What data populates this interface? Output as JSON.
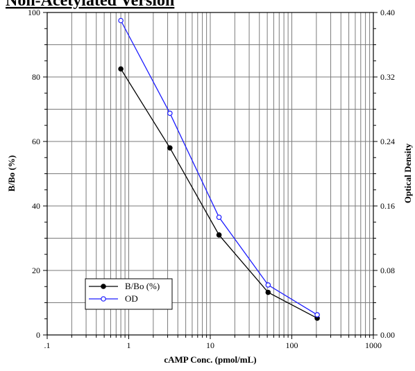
{
  "chart_data": {
    "type": "line",
    "title": "Non-Acetylated Version",
    "xlabel": "cAMP Conc. (pmol/mL)",
    "ylabel": "B/Bo (%)",
    "y2label": "Optical Density",
    "xscale": "log",
    "xlim": [
      0.1,
      1000
    ],
    "ylim": [
      0,
      100
    ],
    "y2lim": [
      0,
      0.4
    ],
    "grid": true,
    "legend_position": "bottom-left",
    "x_tick_labels": [
      ".1",
      "1",
      "10",
      "100",
      "1000"
    ],
    "y_tick_labels": [
      "0",
      "20",
      "40",
      "60",
      "80",
      "100"
    ],
    "y2_tick_labels": [
      "0.00",
      "0.08",
      "0.16",
      "0.24",
      "0.32",
      "0.40"
    ],
    "series": [
      {
        "name": "B/Bo (%)",
        "axis": "left",
        "color": "#000000",
        "marker": "filled-circle",
        "x": [
          0.8,
          3.2,
          12.8,
          51.2,
          204.8
        ],
        "values": [
          82.5,
          58,
          31,
          13.2,
          5.2
        ]
      },
      {
        "name": "OD",
        "axis": "right",
        "color": "#1a1aff",
        "marker": "open-circle",
        "x": [
          0.8,
          3.2,
          12.8,
          51.2,
          204.8
        ],
        "values": [
          0.39,
          0.275,
          0.146,
          0.062,
          0.025
        ]
      }
    ]
  }
}
